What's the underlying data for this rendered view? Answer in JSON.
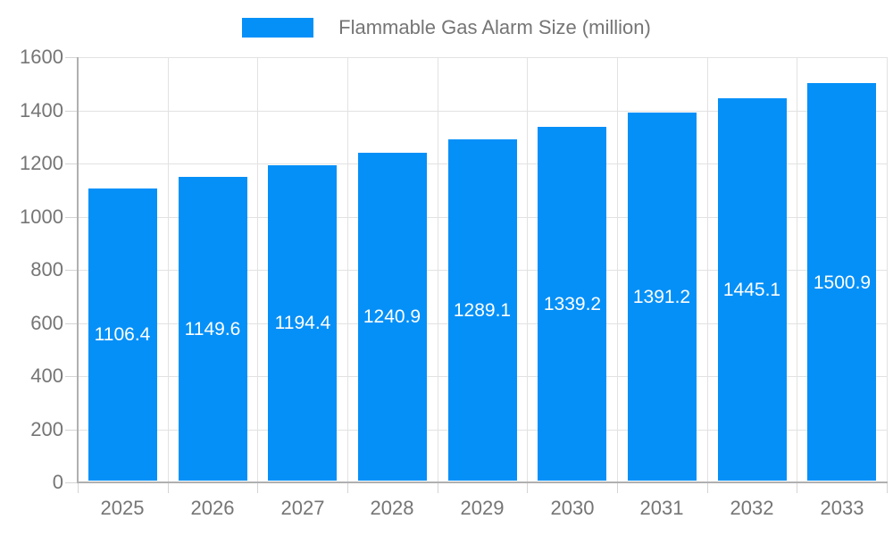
{
  "chart_data": {
    "type": "bar",
    "title": "Flammable Gas Alarm Size (million)",
    "legend": {
      "label": "Flammable Gas Alarm Size (million)",
      "position": "top-center"
    },
    "categories": [
      "2025",
      "2026",
      "2027",
      "2028",
      "2029",
      "2030",
      "2031",
      "2032",
      "2033"
    ],
    "values": [
      1106.4,
      1149.6,
      1194.4,
      1240.9,
      1289.1,
      1339.2,
      1391.2,
      1445.1,
      1500.9
    ],
    "value_labels": [
      "1106.4",
      "1149.6",
      "1194.4",
      "1240.9",
      "1289.1",
      "1339.2",
      "1391.2",
      "1445.1",
      "1500.9"
    ],
    "xlabel": "",
    "ylabel": "",
    "ylim": [
      0,
      1600
    ],
    "ytick_step": 200,
    "yticks": [
      0,
      200,
      400,
      600,
      800,
      1000,
      1200,
      1400,
      1600
    ],
    "grid": true,
    "colors": {
      "bar": "#0590f8",
      "bar_label": "#ffffff",
      "axis_text": "#757575",
      "axis_line": "#b0b0b0",
      "tick": "#d4d4d4",
      "gridline": "#e2e2e2",
      "background": "#ffffff"
    }
  }
}
